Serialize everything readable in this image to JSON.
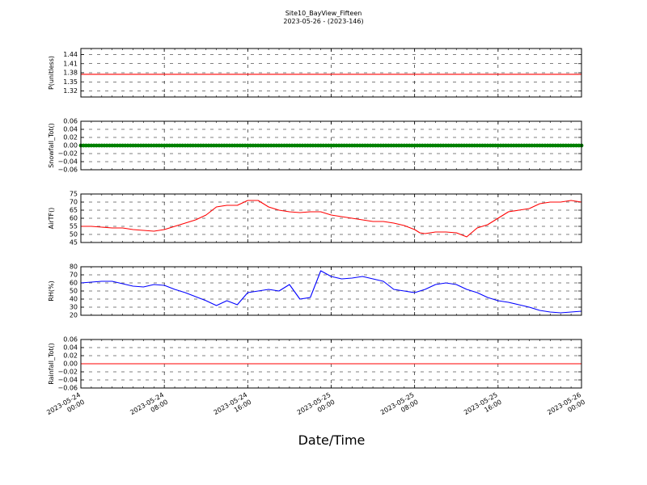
{
  "title": "Site10_BayView_Fifteen",
  "subtitle": "2023-05-26 - (2023-146)",
  "xlabel": "Date/Time",
  "x_ticks": [
    {
      "hours": 0,
      "label": [
        "2023-05-24",
        "00:00"
      ]
    },
    {
      "hours": 8,
      "label": [
        "2023-05-24",
        "08:00"
      ]
    },
    {
      "hours": 16,
      "label": [
        "2023-05-24",
        "16:00"
      ]
    },
    {
      "hours": 24,
      "label": [
        "2023-05-25",
        "00:00"
      ]
    },
    {
      "hours": 32,
      "label": [
        "2023-05-25",
        "08:00"
      ]
    },
    {
      "hours": 40,
      "label": [
        "2023-05-25",
        "16:00"
      ]
    },
    {
      "hours": 48,
      "label": [
        "2023-05-26",
        "00:00"
      ]
    }
  ],
  "chart_data": [
    {
      "type": "line",
      "ylabel": "P(unitless)",
      "color": "#ff0000",
      "ylim": [
        1.3,
        1.46
      ],
      "yticks": [
        1.32,
        1.35,
        1.38,
        1.41,
        1.44
      ],
      "ytick_labels": [
        "1.32",
        "1.35",
        "1.38",
        "1.41",
        "1.44"
      ],
      "x_hours": [
        0,
        48
      ],
      "values": [
        1.375,
        1.375
      ]
    },
    {
      "type": "line",
      "ylabel": "Snowfall_Tot()",
      "color": "#008000",
      "marker": true,
      "ylim": [
        -0.06,
        0.06
      ],
      "yticks": [
        -0.06,
        -0.04,
        -0.02,
        0.0,
        0.02,
        0.04,
        0.06
      ],
      "ytick_labels": [
        "−0.06",
        "−0.04",
        "−0.02",
        "0.00",
        "0.02",
        "0.04",
        "0.06"
      ],
      "x_hours": [
        0,
        48
      ],
      "values": [
        0,
        0
      ]
    },
    {
      "type": "line",
      "ylabel": "AirTF()",
      "color": "#ff0000",
      "ylim": [
        45,
        75
      ],
      "yticks": [
        45,
        50,
        55,
        60,
        65,
        70,
        75
      ],
      "ytick_labels": [
        "45",
        "50",
        "55",
        "60",
        "65",
        "70",
        "75"
      ],
      "x_hours": [
        0,
        1,
        2,
        3,
        4,
        5,
        6,
        7,
        8,
        9,
        10,
        11,
        12,
        13,
        14,
        15,
        16,
        17,
        18,
        19,
        20,
        21,
        22,
        23,
        24,
        25,
        26,
        27,
        28,
        29,
        30,
        31,
        32,
        32.5,
        33,
        33.5,
        34,
        35,
        36,
        37,
        38,
        39,
        40,
        41,
        42,
        43,
        44,
        45,
        46,
        47,
        48
      ],
      "values": [
        55,
        55,
        54.5,
        54,
        54,
        53,
        52.5,
        52,
        53,
        55,
        57,
        59,
        62,
        67,
        68,
        68,
        71,
        71,
        67,
        65,
        64,
        63.5,
        64,
        64,
        62,
        61,
        60,
        59,
        58,
        58,
        57,
        55.5,
        53,
        51,
        50.5,
        51,
        51.5,
        51.5,
        51,
        48.5,
        54,
        56,
        60,
        64,
        65,
        66,
        69,
        70,
        70,
        71,
        70
      ]
    },
    {
      "type": "line",
      "ylabel": "RH(%)",
      "color": "#0000ff",
      "ylim": [
        20,
        80
      ],
      "yticks": [
        20,
        30,
        40,
        50,
        60,
        70,
        80
      ],
      "ytick_labels": [
        "20",
        "30",
        "40",
        "50",
        "60",
        "70",
        "80"
      ],
      "x_hours": [
        0,
        1,
        2,
        3,
        4,
        5,
        6,
        7,
        8,
        9,
        10,
        11,
        12,
        13,
        14,
        15,
        16,
        17,
        18,
        19,
        20,
        21,
        22,
        23,
        24,
        25,
        26,
        27,
        28,
        29,
        30,
        31,
        32,
        33,
        34,
        35,
        36,
        37,
        38,
        39,
        40,
        41,
        42,
        43,
        44,
        45,
        46,
        47,
        48
      ],
      "values": [
        60,
        61,
        62,
        62,
        59,
        56,
        55,
        58,
        57,
        52,
        48,
        43,
        38,
        32,
        38,
        33,
        48,
        50,
        52,
        50,
        58,
        40,
        42,
        75,
        68,
        65,
        66,
        68,
        65,
        62,
        52,
        50,
        48,
        52,
        58,
        60,
        58,
        52,
        48,
        42,
        38,
        36,
        33,
        30,
        26,
        24,
        23,
        24,
        25
      ]
    },
    {
      "type": "line",
      "ylabel": "Rainfall_Tot()",
      "color": "#ff0000",
      "ylim": [
        -0.06,
        0.06
      ],
      "yticks": [
        -0.06,
        -0.04,
        -0.02,
        0.0,
        0.02,
        0.04,
        0.06
      ],
      "ytick_labels": [
        "−0.06",
        "−0.04",
        "−0.02",
        "0.00",
        "0.02",
        "0.04",
        "0.06"
      ],
      "x_hours": [
        0,
        48
      ],
      "values": [
        0,
        0
      ]
    }
  ]
}
